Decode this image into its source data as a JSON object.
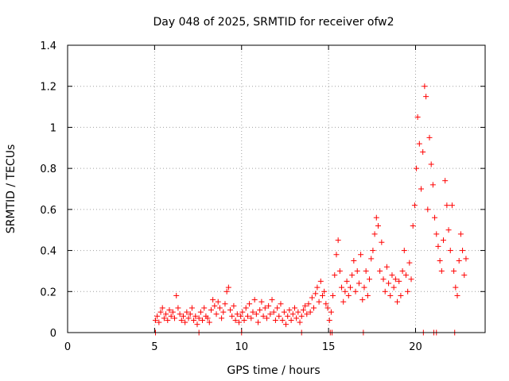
{
  "chart_data": {
    "type": "scatter",
    "title": "Day 048 of 2025, SRMTID for receiver ofw2",
    "xlabel": "GPS time / hours",
    "ylabel": "SRMTID / TECUs",
    "xlim": [
      0,
      24
    ],
    "ylim": [
      0,
      1.4
    ],
    "xticks": [
      0,
      5,
      10,
      15,
      20
    ],
    "yticks": [
      0,
      0.2,
      0.4,
      0.6,
      0.8,
      1,
      1.2,
      1.4
    ],
    "ytick_labels": [
      "0",
      "0.2",
      "0.4",
      "0.6",
      "0.8",
      "1",
      "1.2",
      "1.4"
    ],
    "grid": true,
    "marker": "+",
    "color": "#ff0000",
    "series": [
      {
        "name": "SRMTID",
        "points": [
          [
            5.05,
            0.06
          ],
          [
            5.15,
            0.08
          ],
          [
            5.25,
            0.05
          ],
          [
            5.35,
            0.1
          ],
          [
            5.45,
            0.12
          ],
          [
            5.55,
            0.07
          ],
          [
            5.65,
            0.09
          ],
          [
            5.75,
            0.06
          ],
          [
            5.85,
            0.11
          ],
          [
            5.95,
            0.08
          ],
          [
            6.05,
            0.1
          ],
          [
            6.15,
            0.07
          ],
          [
            6.25,
            0.18
          ],
          [
            6.35,
            0.12
          ],
          [
            6.45,
            0.09
          ],
          [
            6.55,
            0.06
          ],
          [
            6.65,
            0.08
          ],
          [
            6.75,
            0.05
          ],
          [
            6.85,
            0.1
          ],
          [
            6.95,
            0.07
          ],
          [
            7.05,
            0.09
          ],
          [
            7.15,
            0.12
          ],
          [
            7.25,
            0.06
          ],
          [
            7.35,
            0.08
          ],
          [
            7.45,
            0.04
          ],
          [
            7.55,
            0.07
          ],
          [
            7.65,
            0.1
          ],
          [
            7.75,
            0.06
          ],
          [
            7.85,
            0.12
          ],
          [
            7.95,
            0.08
          ],
          [
            8.05,
            0.07
          ],
          [
            8.15,
            0.05
          ],
          [
            8.25,
            0.11
          ],
          [
            8.35,
            0.16
          ],
          [
            8.45,
            0.13
          ],
          [
            8.55,
            0.09
          ],
          [
            8.65,
            0.15
          ],
          [
            8.75,
            0.12
          ],
          [
            8.85,
            0.07
          ],
          [
            8.95,
            0.1
          ],
          [
            9.05,
            0.14
          ],
          [
            9.15,
            0.2
          ],
          [
            9.25,
            0.22
          ],
          [
            9.35,
            0.11
          ],
          [
            9.45,
            0.08
          ],
          [
            9.55,
            0.13
          ],
          [
            9.65,
            0.06
          ],
          [
            9.75,
            0.09
          ],
          [
            9.85,
            0.05
          ],
          [
            9.95,
            0.08
          ],
          [
            10.05,
            0.1
          ],
          [
            10.15,
            0.06
          ],
          [
            10.25,
            0.12
          ],
          [
            10.35,
            0.08
          ],
          [
            10.45,
            0.14
          ],
          [
            10.55,
            0.07
          ],
          [
            10.65,
            0.1
          ],
          [
            10.75,
            0.16
          ],
          [
            10.85,
            0.09
          ],
          [
            10.95,
            0.05
          ],
          [
            11.05,
            0.11
          ],
          [
            11.15,
            0.15
          ],
          [
            11.25,
            0.08
          ],
          [
            11.35,
            0.12
          ],
          [
            11.45,
            0.07
          ],
          [
            11.55,
            0.13
          ],
          [
            11.65,
            0.09
          ],
          [
            11.75,
            0.16
          ],
          [
            11.85,
            0.1
          ],
          [
            11.95,
            0.06
          ],
          [
            12.05,
            0.12
          ],
          [
            12.15,
            0.08
          ],
          [
            12.25,
            0.14
          ],
          [
            12.35,
            0.06
          ],
          [
            12.45,
            0.1
          ],
          [
            12.55,
            0.04
          ],
          [
            12.65,
            0.08
          ],
          [
            12.75,
            0.11
          ],
          [
            12.85,
            0.06
          ],
          [
            12.95,
            0.09
          ],
          [
            13.05,
            0.12
          ],
          [
            13.15,
            0.07
          ],
          [
            13.25,
            0.1
          ],
          [
            13.35,
            0.05
          ],
          [
            13.45,
            0.08
          ],
          [
            13.55,
            0.11
          ],
          [
            13.65,
            0.13
          ],
          [
            13.75,
            0.09
          ],
          [
            13.85,
            0.14
          ],
          [
            13.95,
            0.1
          ],
          [
            14.05,
            0.17
          ],
          [
            14.15,
            0.12
          ],
          [
            14.25,
            0.19
          ],
          [
            14.35,
            0.22
          ],
          [
            14.45,
            0.15
          ],
          [
            14.55,
            0.25
          ],
          [
            14.65,
            0.18
          ],
          [
            14.75,
            0.2
          ],
          [
            14.85,
            0.14
          ],
          [
            14.95,
            0.12
          ],
          [
            15.05,
            0.06
          ],
          [
            15.15,
            0.1
          ],
          [
            15.25,
            0.18
          ],
          [
            15.35,
            0.28
          ],
          [
            15.45,
            0.38
          ],
          [
            15.55,
            0.45
          ],
          [
            15.65,
            0.3
          ],
          [
            15.75,
            0.22
          ],
          [
            15.85,
            0.15
          ],
          [
            15.95,
            0.2
          ],
          [
            16.05,
            0.25
          ],
          [
            16.15,
            0.18
          ],
          [
            16.25,
            0.22
          ],
          [
            16.35,
            0.28
          ],
          [
            16.45,
            0.35
          ],
          [
            16.55,
            0.2
          ],
          [
            16.65,
            0.3
          ],
          [
            16.75,
            0.24
          ],
          [
            16.85,
            0.38
          ],
          [
            16.95,
            0.16
          ],
          [
            17.05,
            0.22
          ],
          [
            17.15,
            0.3
          ],
          [
            17.25,
            0.18
          ],
          [
            17.35,
            0.26
          ],
          [
            17.45,
            0.36
          ],
          [
            17.55,
            0.4
          ],
          [
            17.65,
            0.48
          ],
          [
            17.75,
            0.56
          ],
          [
            17.85,
            0.52
          ],
          [
            17.95,
            0.3
          ],
          [
            18.05,
            0.44
          ],
          [
            18.15,
            0.26
          ],
          [
            18.25,
            0.2
          ],
          [
            18.35,
            0.32
          ],
          [
            18.45,
            0.24
          ],
          [
            18.55,
            0.18
          ],
          [
            18.65,
            0.28
          ],
          [
            18.75,
            0.22
          ],
          [
            18.85,
            0.26
          ],
          [
            18.95,
            0.15
          ],
          [
            19.05,
            0.25
          ],
          [
            19.15,
            0.18
          ],
          [
            19.25,
            0.3
          ],
          [
            19.35,
            0.4
          ],
          [
            19.45,
            0.28
          ],
          [
            19.55,
            0.2
          ],
          [
            19.65,
            0.34
          ],
          [
            19.75,
            0.26
          ],
          [
            19.85,
            0.52
          ],
          [
            19.95,
            0.62
          ],
          [
            20.05,
            0.8
          ],
          [
            20.12,
            1.05
          ],
          [
            20.22,
            0.92
          ],
          [
            20.32,
            0.7
          ],
          [
            20.42,
            0.88
          ],
          [
            20.52,
            1.2
          ],
          [
            20.6,
            1.15
          ],
          [
            20.7,
            0.6
          ],
          [
            20.8,
            0.95
          ],
          [
            20.9,
            0.82
          ],
          [
            21.0,
            0.72
          ],
          [
            21.1,
            0.56
          ],
          [
            21.2,
            0.48
          ],
          [
            21.3,
            0.42
          ],
          [
            21.4,
            0.35
          ],
          [
            21.5,
            0.3
          ],
          [
            21.6,
            0.45
          ],
          [
            21.7,
            0.74
          ],
          [
            21.8,
            0.62
          ],
          [
            21.9,
            0.5
          ],
          [
            22.0,
            0.4
          ],
          [
            22.1,
            0.62
          ],
          [
            22.2,
            0.3
          ],
          [
            22.3,
            0.22
          ],
          [
            22.4,
            0.18
          ],
          [
            22.5,
            0.35
          ],
          [
            22.6,
            0.48
          ],
          [
            22.7,
            0.4
          ],
          [
            22.8,
            0.28
          ],
          [
            22.9,
            0.36
          ]
        ]
      }
    ],
    "baseline_points_x": [
      5.05,
      7.55,
      10.0,
      13.45,
      15.1,
      15.2,
      17.0,
      20.45,
      21.05,
      21.2,
      22.25
    ]
  }
}
